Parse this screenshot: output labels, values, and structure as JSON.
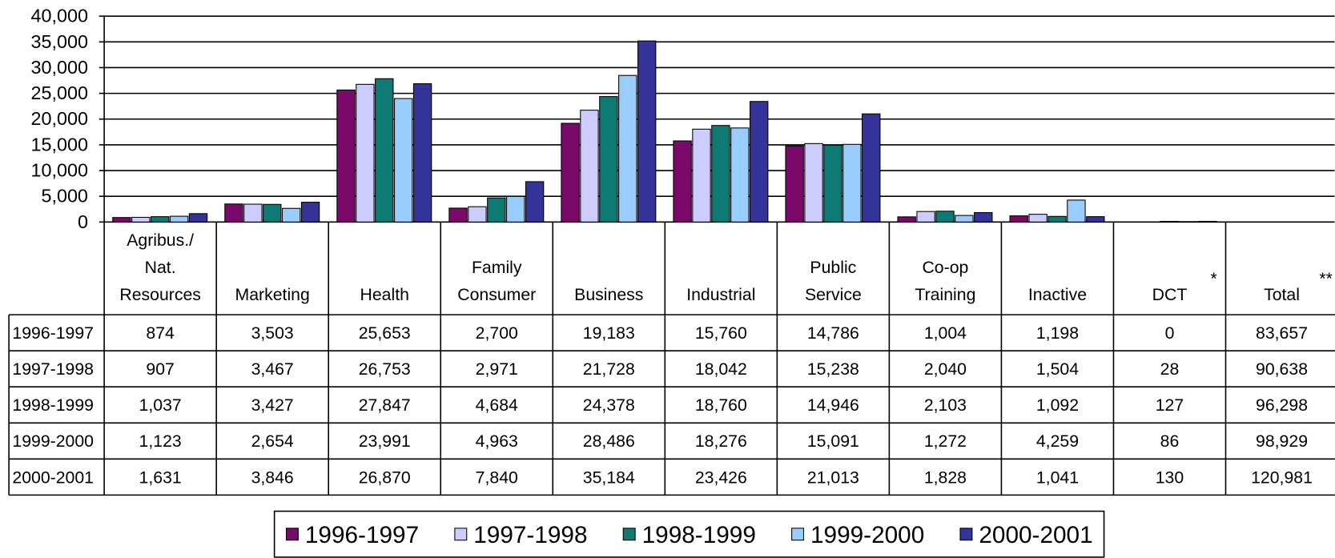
{
  "chart_data": {
    "type": "bar",
    "categories": [
      "Agribus./\nNat.\nResources",
      "Marketing",
      "Health",
      "Family\nConsumer",
      "Business",
      "Industrial",
      "Public\nService",
      "Co-op\nTraining",
      "Inactive",
      "DCT",
      "Total"
    ],
    "category_marks": [
      null,
      null,
      null,
      null,
      null,
      null,
      null,
      null,
      null,
      "*",
      "**"
    ],
    "series": [
      {
        "name": "1996-1997",
        "color": "#7a0a6a",
        "values": [
          874,
          3503,
          25653,
          2700,
          19183,
          15760,
          14786,
          1004,
          1198,
          0,
          83657
        ],
        "value_labels": [
          "874",
          "3,503",
          "25,653",
          "2,700",
          "19,183",
          "15,760",
          "14,786",
          "1,004",
          "1,198",
          "0",
          "83,657"
        ]
      },
      {
        "name": "1997-1998",
        "color": "#ccccff",
        "values": [
          907,
          3467,
          26753,
          2971,
          21728,
          18042,
          15238,
          2040,
          1504,
          28,
          90638
        ],
        "value_labels": [
          "907",
          "3,467",
          "26,753",
          "2,971",
          "21,728",
          "18,042",
          "15,238",
          "2,040",
          "1,504",
          "28",
          "90,638"
        ]
      },
      {
        "name": "1998-1999",
        "color": "#0e7a74",
        "values": [
          1037,
          3427,
          27847,
          4684,
          24378,
          18760,
          14946,
          2103,
          1092,
          127,
          96298
        ],
        "value_labels": [
          "1,037",
          "3,427",
          "27,847",
          "4,684",
          "24,378",
          "18,760",
          "14,946",
          "2,103",
          "1,092",
          "127",
          "96,298"
        ]
      },
      {
        "name": "1999-2000",
        "color": "#99ccff",
        "values": [
          1123,
          2654,
          23991,
          4963,
          28486,
          18276,
          15091,
          1272,
          4259,
          86,
          98929
        ],
        "value_labels": [
          "1,123",
          "2,654",
          "23,991",
          "4,963",
          "28,486",
          "18,276",
          "15,091",
          "1,272",
          "4,259",
          "86",
          "98,929"
        ]
      },
      {
        "name": "2000-2001",
        "color": "#333399",
        "values": [
          1631,
          3846,
          26870,
          7840,
          35184,
          23426,
          21013,
          1828,
          1041,
          130,
          120981
        ],
        "value_labels": [
          "1,631",
          "3,846",
          "26,870",
          "7,840",
          "35,184",
          "23,426",
          "21,013",
          "1,828",
          "1,041",
          "130",
          "120,981"
        ]
      }
    ],
    "ylim": [
      0,
      40000
    ],
    "yticks": [
      0,
      {
        "value": 5000,
        "label": "5,000"
      },
      {
        "value": 10000,
        "label": "10,000"
      },
      {
        "value": 15000,
        "label": "15,000"
      },
      {
        "value": 20000,
        "label": "20,000"
      },
      {
        "value": 25000,
        "label": "25,000"
      },
      {
        "value": 30000,
        "label": "30,000"
      },
      {
        "value": 35000,
        "label": "35,000"
      },
      {
        "value": 40000,
        "label": "40,000"
      }
    ],
    "grid": true,
    "legend": "bottom"
  }
}
